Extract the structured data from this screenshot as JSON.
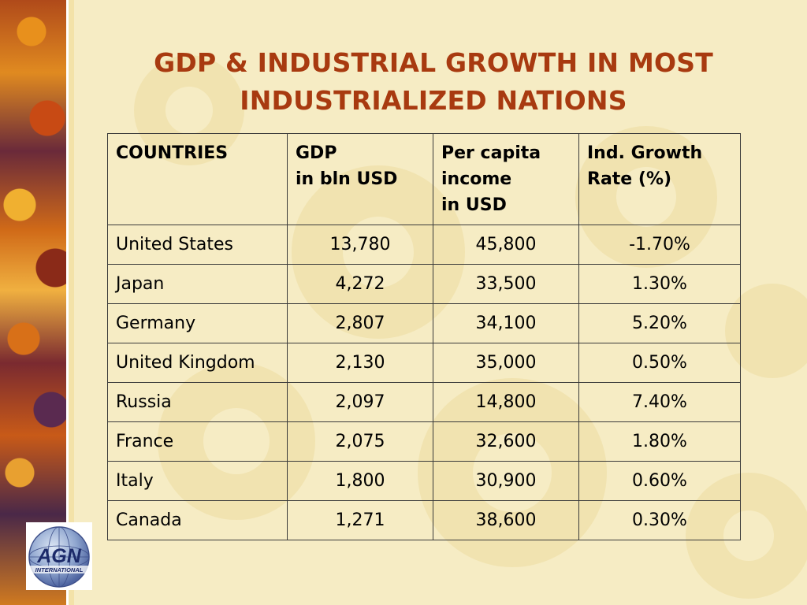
{
  "title": {
    "line1": "GDP & INDUSTRIAL GROWTH IN MOST",
    "line2": "INDUSTRIALIZED NATIONS"
  },
  "table": {
    "headers": {
      "countries": [
        "COUNTRIES"
      ],
      "gdp": [
        "GDP",
        "in bln USD"
      ],
      "income": [
        "Per capita",
        "income",
        "in USD"
      ],
      "growth": [
        "Ind. Growth",
        "Rate (%)"
      ]
    },
    "rows": [
      {
        "country": "United States",
        "gdp": "13,780",
        "income": "45,800",
        "growth": "-1.70%"
      },
      {
        "country": "Japan",
        "gdp": "4,272",
        "income": "33,500",
        "growth": "1.30%"
      },
      {
        "country": "Germany",
        "gdp": "2,807",
        "income": "34,100",
        "growth": "5.20%"
      },
      {
        "country": "United Kingdom",
        "gdp": "2,130",
        "income": "35,000",
        "growth": "0.50%"
      },
      {
        "country": "Russia",
        "gdp": "2,097",
        "income": "14,800",
        "growth": "7.40%"
      },
      {
        "country": "France",
        "gdp": "2,075",
        "income": "32,600",
        "growth": "1.80%"
      },
      {
        "country": "Italy",
        "gdp": "1,800",
        "income": "30,900",
        "growth": "0.60%"
      },
      {
        "country": "Canada",
        "gdp": "1,271",
        "income": "38,600",
        "growth": "0.30%"
      }
    ]
  },
  "logo": {
    "text": "AGN",
    "subtext": "INTERNATIONAL"
  },
  "colors": {
    "title": "#a83a10",
    "background": "#f6ecc4"
  }
}
